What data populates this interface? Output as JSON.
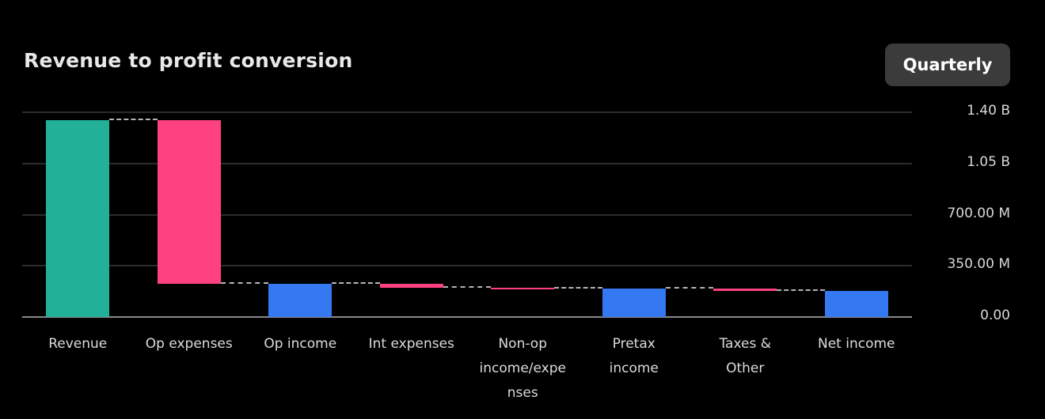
{
  "header": {
    "title": "Revenue to profit conversion",
    "period_button_label": "Quarterly"
  },
  "colors": {
    "background": "#000000",
    "title": "#e8e8e8",
    "button_bg": "#3b3b3b",
    "button_text": "#ffffff",
    "bar_start": "#23b098",
    "bar_decrease": "#fd4181",
    "bar_total": "#3478f2",
    "gridline": "#2c2c2c",
    "baseline": "#8a8a8a",
    "connector": "#b5b5b5",
    "axis_label": "#d9d9d9"
  },
  "chart_data": {
    "type": "waterfall",
    "title": "Revenue to profit conversion",
    "period": "Quarterly",
    "grid": true,
    "axis_side": "right",
    "ylim_m": [
      0,
      1400
    ],
    "y_ticks": [
      {
        "label": "1.40 B",
        "value_m": 1400
      },
      {
        "label": "1.05 B",
        "value_m": 1050
      },
      {
        "label": "700.00 M",
        "value_m": 700
      },
      {
        "label": "350.00 M",
        "value_m": 350
      },
      {
        "label": "0.00",
        "value_m": 0
      }
    ],
    "categories": [
      "Revenue",
      "Op expenses",
      "Op income",
      "Int expenses",
      "Non-op income/expenses",
      "Pretax income",
      "Taxes & Other",
      "Net income"
    ],
    "category_label_lines": [
      [
        "Revenue"
      ],
      [
        "Op expenses"
      ],
      [
        "Op income"
      ],
      [
        "Int expenses"
      ],
      [
        "Non-op",
        "income/expe",
        "nses"
      ],
      [
        "Pretax",
        "income"
      ],
      [
        "Taxes &",
        "Other"
      ],
      [
        "Net income"
      ]
    ],
    "series": [
      {
        "name": "Revenue",
        "kind": "start",
        "value_m": 1345
      },
      {
        "name": "Op expenses",
        "kind": "decrease",
        "value_m": -1120
      },
      {
        "name": "Op income",
        "kind": "total",
        "value_m": 225
      },
      {
        "name": "Int expenses",
        "kind": "decrease",
        "value_m": -25
      },
      {
        "name": "Non-op income/expenses",
        "kind": "decrease",
        "value_m": -5
      },
      {
        "name": "Pretax income",
        "kind": "total",
        "value_m": 195
      },
      {
        "name": "Taxes & Other",
        "kind": "decrease",
        "value_m": -15
      },
      {
        "name": "Net income",
        "kind": "total",
        "value_m": 180
      }
    ]
  }
}
